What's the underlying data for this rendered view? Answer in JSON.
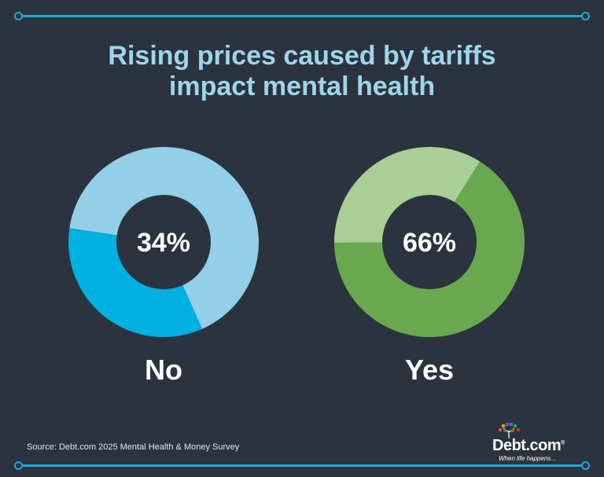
{
  "colors": {
    "background": "#2b333e",
    "accent_line": "#1ea8e0",
    "title": "#9fd5ea",
    "text": "#ffffff"
  },
  "title_lines": [
    "Rising prices caused by tariffs",
    "impact mental health"
  ],
  "chart_data": [
    {
      "type": "pie",
      "variant": "donut",
      "center_label": "34%",
      "label": "No",
      "slices": [
        {
          "value": 34,
          "color": "#00b0e0"
        },
        {
          "value": 66,
          "color": "#93cfe6"
        }
      ]
    },
    {
      "type": "pie",
      "variant": "donut",
      "center_label": "66%",
      "label": "Yes",
      "slices": [
        {
          "value": 66,
          "color": "#6aa84f"
        },
        {
          "value": 34,
          "color": "#a9cf96"
        }
      ]
    }
  ],
  "source": "Source: Debt.com 2025 Mental Health & Money Survey",
  "logo": {
    "brand": "Debt.com",
    "registered": "®",
    "tagline": "When life happens..."
  }
}
